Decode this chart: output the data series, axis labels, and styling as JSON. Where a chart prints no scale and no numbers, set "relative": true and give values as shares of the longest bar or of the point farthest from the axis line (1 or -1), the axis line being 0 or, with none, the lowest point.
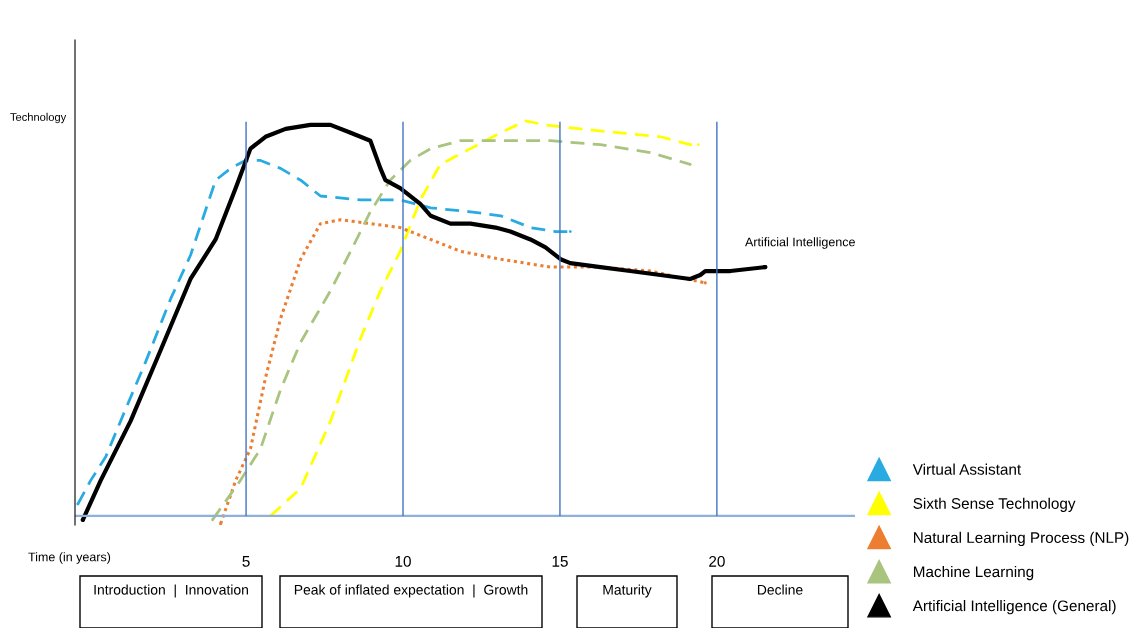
{
  "chart_data": {
    "type": "line",
    "relative": true,
    "ylabel": "Technology",
    "xlabel": "Time (in years)",
    "xlim": [
      -0.45,
      24.4
    ],
    "xticks": [
      5,
      10,
      15,
      20
    ],
    "legend": "bottom right",
    "grid": false,
    "ref_lines": [
      {
        "axis": "y",
        "value": 0,
        "color": "#8fb0d8"
      },
      {
        "axis": "x",
        "value": 5,
        "color": "#4472c4"
      },
      {
        "axis": "x",
        "value": 10,
        "color": "#4472c4"
      },
      {
        "axis": "x",
        "value": 15,
        "color": "#4472c4"
      },
      {
        "axis": "x",
        "value": 20,
        "color": "#4472c4"
      }
    ],
    "annotations": [
      "Artificial Intelligence",
      "Introduction  |  Innovation",
      "Peak of inflated expectation  |  Growth",
      "Maturity",
      "Decline"
    ],
    "series": [
      {
        "name": "Virtual Assistant",
        "color": "#29abe2",
        "line_style": "dashed",
        "x": [
          -0.36,
          0.05,
          0.53,
          1.16,
          1.8,
          2.6,
          3.23,
          4.03,
          4.51,
          4.98,
          5.46,
          6.1,
          6.74,
          7.37,
          8.65,
          9.91,
          10.88,
          12.15,
          13.11,
          14.06,
          14.86,
          15.33
        ],
        "values": [
          0.03,
          0.09,
          0.15,
          0.27,
          0.39,
          0.55,
          0.66,
          0.85,
          0.88,
          0.9,
          0.9,
          0.88,
          0.85,
          0.81,
          0.8,
          0.8,
          0.78,
          0.77,
          0.76,
          0.73,
          0.72,
          0.72
        ]
      },
      {
        "name": "Sixth Sense Technology",
        "color": "#ffff00",
        "line_style": "dashed",
        "x": [
          5.78,
          6.74,
          7.69,
          8.65,
          9.28,
          9.91,
          10.55,
          11.19,
          12.15,
          13.11,
          13.9,
          14.54,
          15.65,
          16.92,
          18.2,
          19.15,
          19.41
        ],
        "values": [
          0.0,
          0.07,
          0.24,
          0.45,
          0.57,
          0.67,
          0.8,
          0.89,
          0.93,
          0.97,
          1.0,
          0.99,
          0.98,
          0.97,
          0.96,
          0.94,
          0.94
        ]
      },
      {
        "name": "Natural Learning Process (NLP)",
        "color": "#ed7d31",
        "line_style": "dotted",
        "x": [
          4.19,
          4.67,
          5.14,
          5.62,
          6.1,
          6.74,
          7.37,
          8.01,
          8.97,
          9.91,
          10.88,
          11.83,
          13.11,
          14.7,
          16.29,
          17.88,
          19.63
        ],
        "values": [
          -0.02,
          0.09,
          0.17,
          0.35,
          0.5,
          0.65,
          0.74,
          0.75,
          0.74,
          0.73,
          0.7,
          0.67,
          0.65,
          0.63,
          0.63,
          0.62,
          0.59
        ]
      },
      {
        "name": "Machine Learning",
        "color": "#a9c47f",
        "line_style": "dashed",
        "x": [
          3.93,
          4.82,
          5.46,
          6.1,
          6.74,
          7.69,
          8.33,
          8.96,
          9.59,
          10.23,
          10.88,
          11.83,
          13.11,
          14.7,
          16.29,
          17.88,
          19.15
        ],
        "values": [
          -0.01,
          0.09,
          0.17,
          0.32,
          0.44,
          0.57,
          0.67,
          0.77,
          0.85,
          0.9,
          0.93,
          0.95,
          0.95,
          0.95,
          0.94,
          0.92,
          0.89
        ]
      },
      {
        "name": "Artificial Intelligence (General)",
        "color": "#000000",
        "line_style": "solid",
        "x": [
          -0.2,
          0.37,
          1.32,
          2.28,
          3.23,
          4.03,
          4.67,
          5.14,
          5.62,
          6.26,
          7.05,
          7.69,
          8.33,
          8.96,
          9.28,
          9.44,
          9.91,
          10.55,
          10.88,
          11.51,
          12.15,
          12.95,
          13.42,
          14.06,
          14.54,
          15.02,
          15.33,
          16.29,
          17.24,
          18.2,
          19.15,
          19.47,
          19.63,
          20.43,
          21.54
        ],
        "values": [
          -0.01,
          0.09,
          0.24,
          0.42,
          0.6,
          0.7,
          0.83,
          0.93,
          0.96,
          0.98,
          0.99,
          0.99,
          0.97,
          0.95,
          0.88,
          0.85,
          0.83,
          0.79,
          0.76,
          0.74,
          0.74,
          0.73,
          0.72,
          0.7,
          0.68,
          0.65,
          0.64,
          0.63,
          0.62,
          0.61,
          0.6,
          0.61,
          0.62,
          0.62,
          0.63
        ]
      }
    ]
  }
}
